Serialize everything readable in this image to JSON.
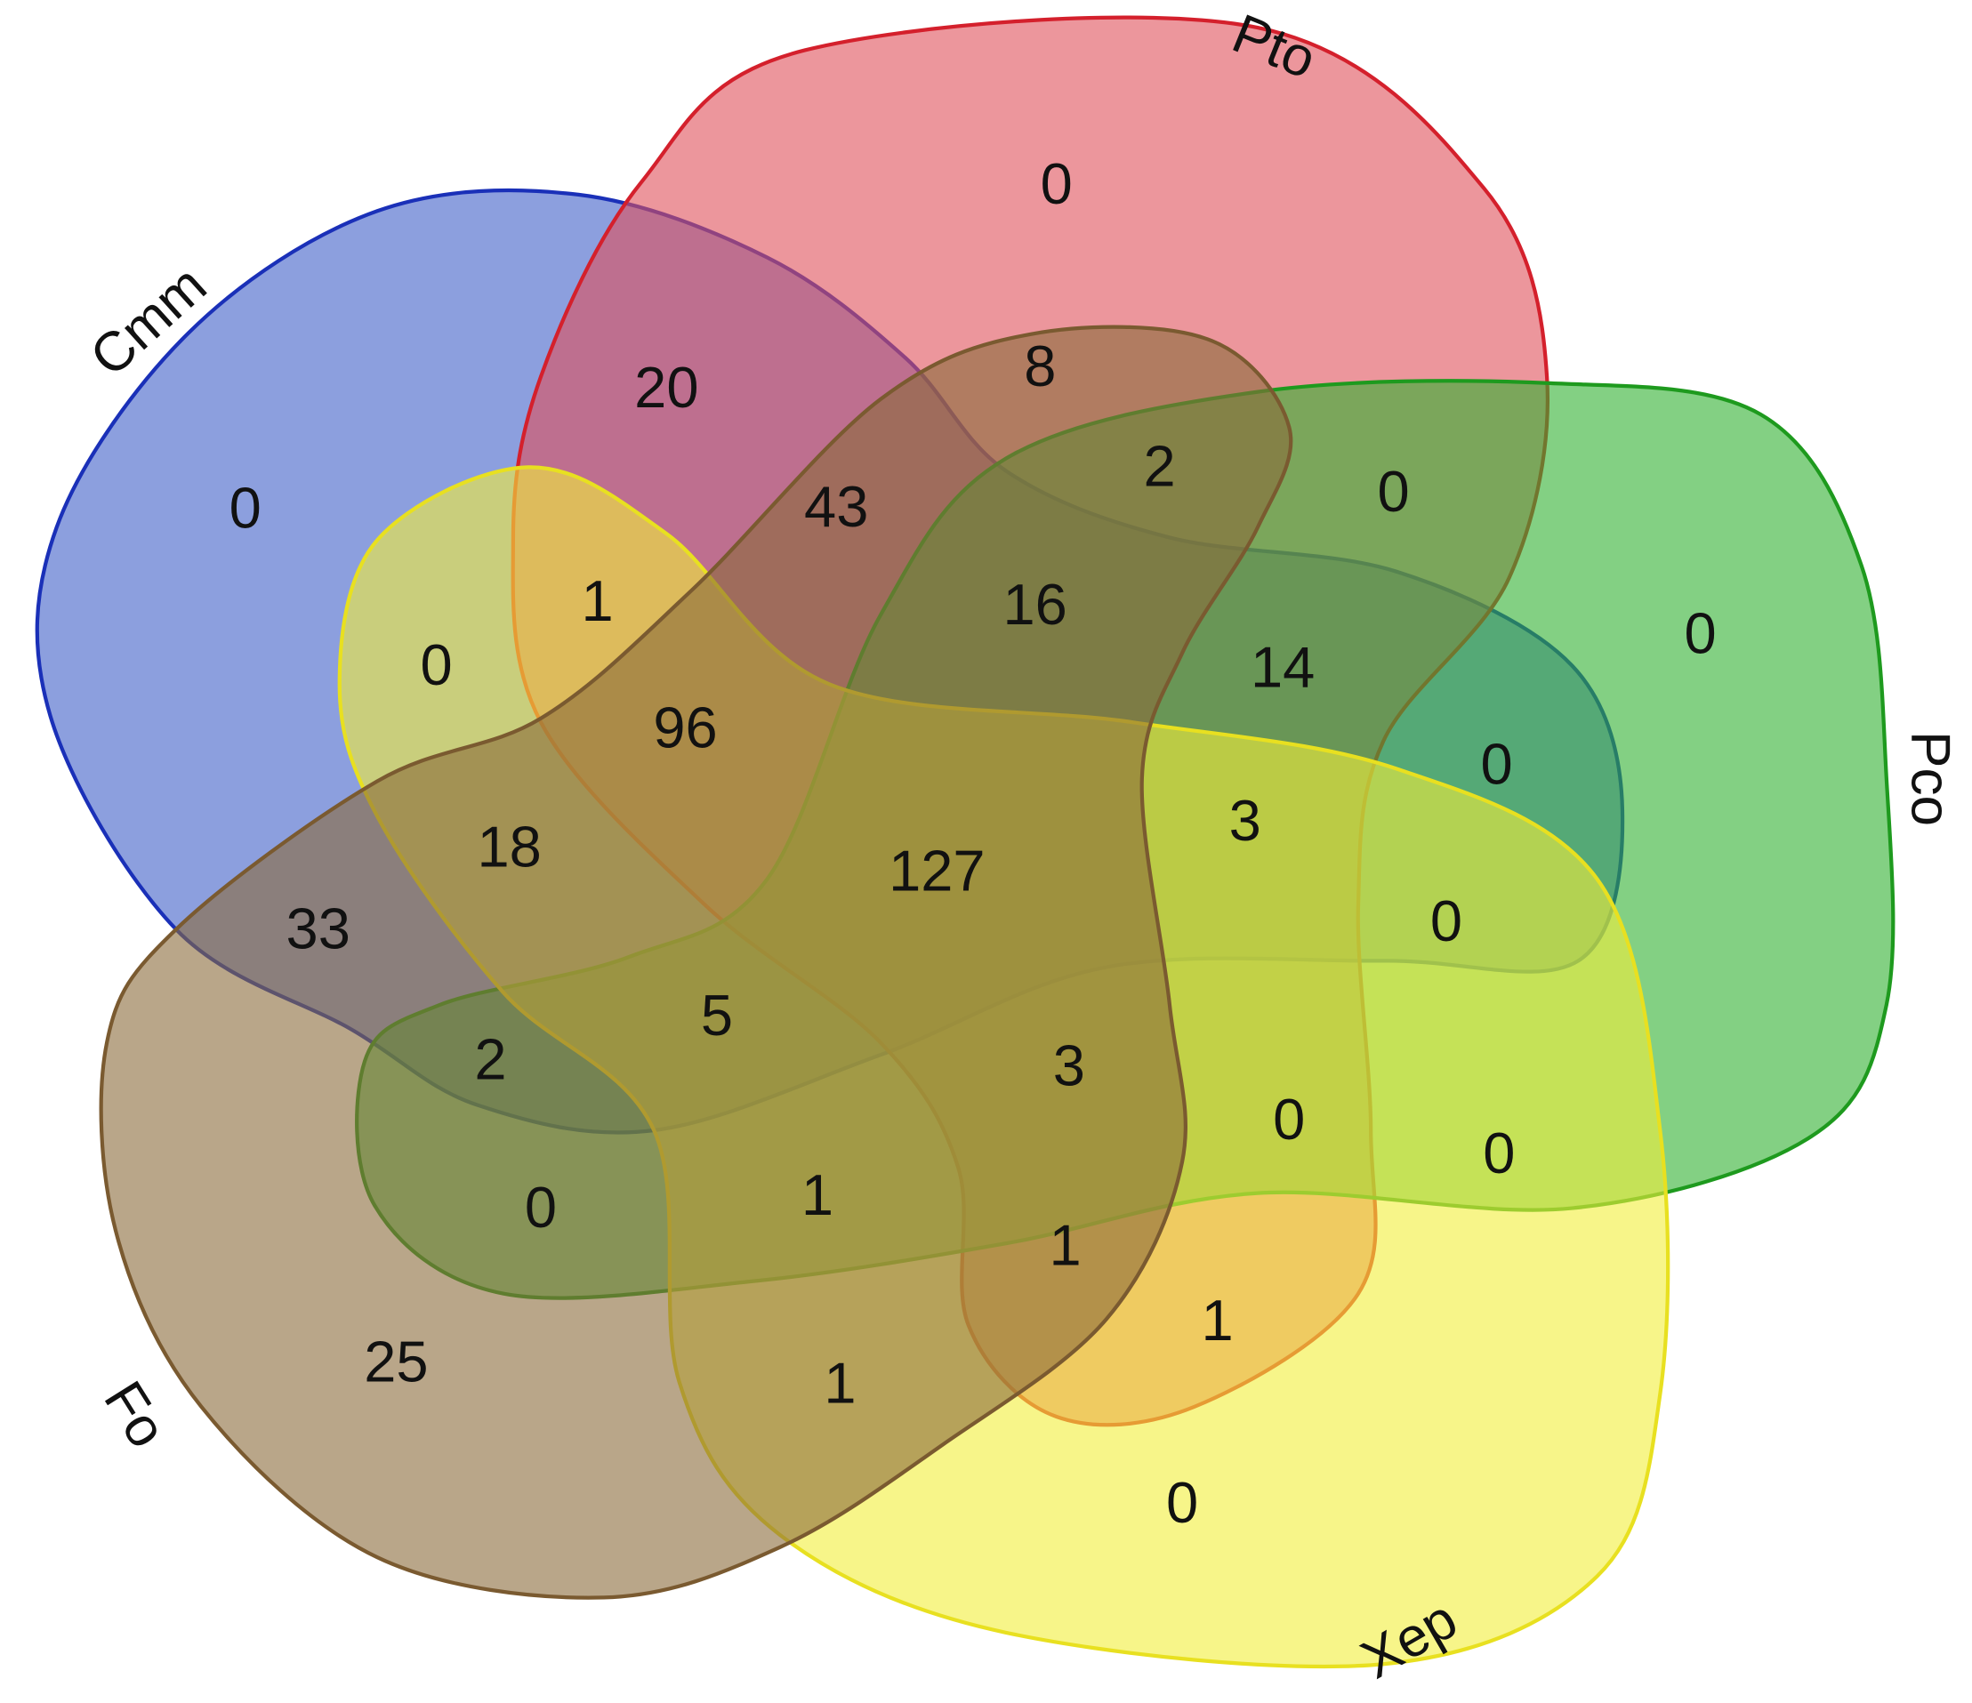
{
  "sets": [
    {
      "label": "Cmm",
      "fill": "#3f5fc8",
      "stroke": "#1a30b8"
    },
    {
      "label": "Pto",
      "fill": "#e0505a",
      "stroke": "#d4202c"
    },
    {
      "label": "Pco",
      "fill": "#30b030",
      "stroke": "#1e9a1e"
    },
    {
      "label": "Xep",
      "fill": "#f2ee3a",
      "stroke": "#e8e020"
    },
    {
      "label": "Fo",
      "fill": "#8b6a3a",
      "stroke": "#7a5a30"
    }
  ],
  "regions": [
    0,
    20,
    8,
    0,
    2,
    0,
    43,
    1,
    16,
    0,
    0,
    14,
    96,
    0,
    3,
    18,
    127,
    0,
    33,
    5,
    2,
    3,
    0,
    0,
    0,
    1,
    1,
    1,
    25,
    1,
    0
  ]
}
